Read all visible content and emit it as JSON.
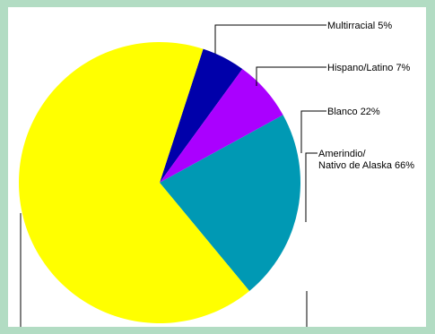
{
  "chart_data": {
    "type": "pie",
    "slices": [
      {
        "label": "Multirracial 5%",
        "value": 5,
        "color": "#0000aa"
      },
      {
        "label": "Hispano/Latino 7%",
        "value": 7,
        "color": "#aa00ff"
      },
      {
        "label": "Blanco 22%",
        "value": 22,
        "color": "#0099b4"
      },
      {
        "label_lines": [
          "Amerindio/",
          "Nativo de Alaska 66%"
        ],
        "value": 66,
        "color": "#ffff00"
      }
    ],
    "start_angle_deg": 18,
    "direction": "clockwise",
    "legend": "none",
    "labels": "outside-right with leader lines"
  },
  "page": {
    "background": "#b2dcc3",
    "panel": "#ffffff"
  }
}
